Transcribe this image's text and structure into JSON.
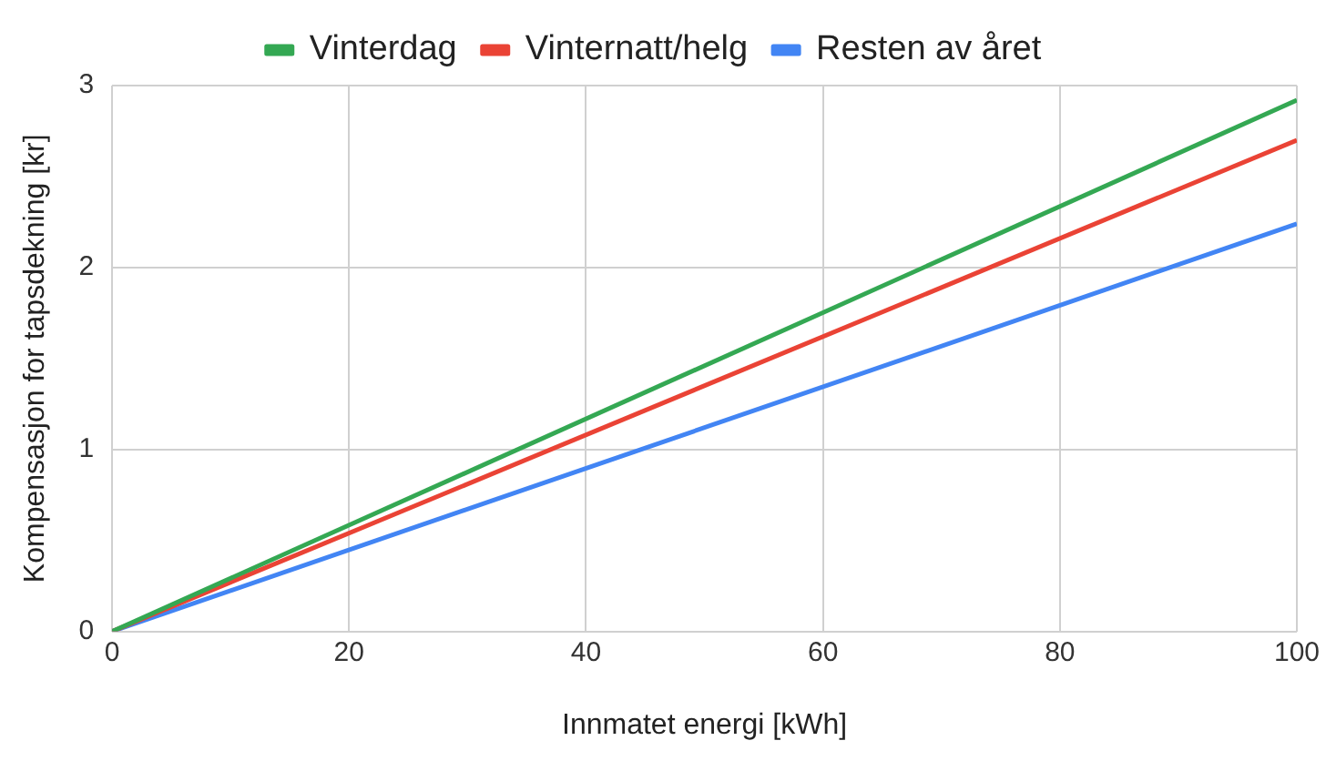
{
  "chart_data": {
    "type": "line",
    "xlabel": "Innmatet energi [kWh]",
    "ylabel": "Kompensasjon for tapsdekning [kr]",
    "x": [
      0,
      100
    ],
    "series": [
      {
        "name": "Vinterdag",
        "color": "#34a853",
        "values": [
          0,
          2.92
        ]
      },
      {
        "name": "Vinternatt/helg",
        "color": "#ea4335",
        "values": [
          0,
          2.7
        ]
      },
      {
        "name": "Resten av året",
        "color": "#4285f4",
        "values": [
          0,
          2.24
        ]
      }
    ],
    "xlim": [
      0,
      100
    ],
    "xticks": [
      0,
      20,
      40,
      60,
      80,
      100
    ],
    "ylim": [
      0,
      3
    ],
    "yticks": [
      0,
      1,
      2,
      3
    ],
    "grid": true,
    "legend": "top",
    "marker": "none",
    "line_style": "solid"
  }
}
